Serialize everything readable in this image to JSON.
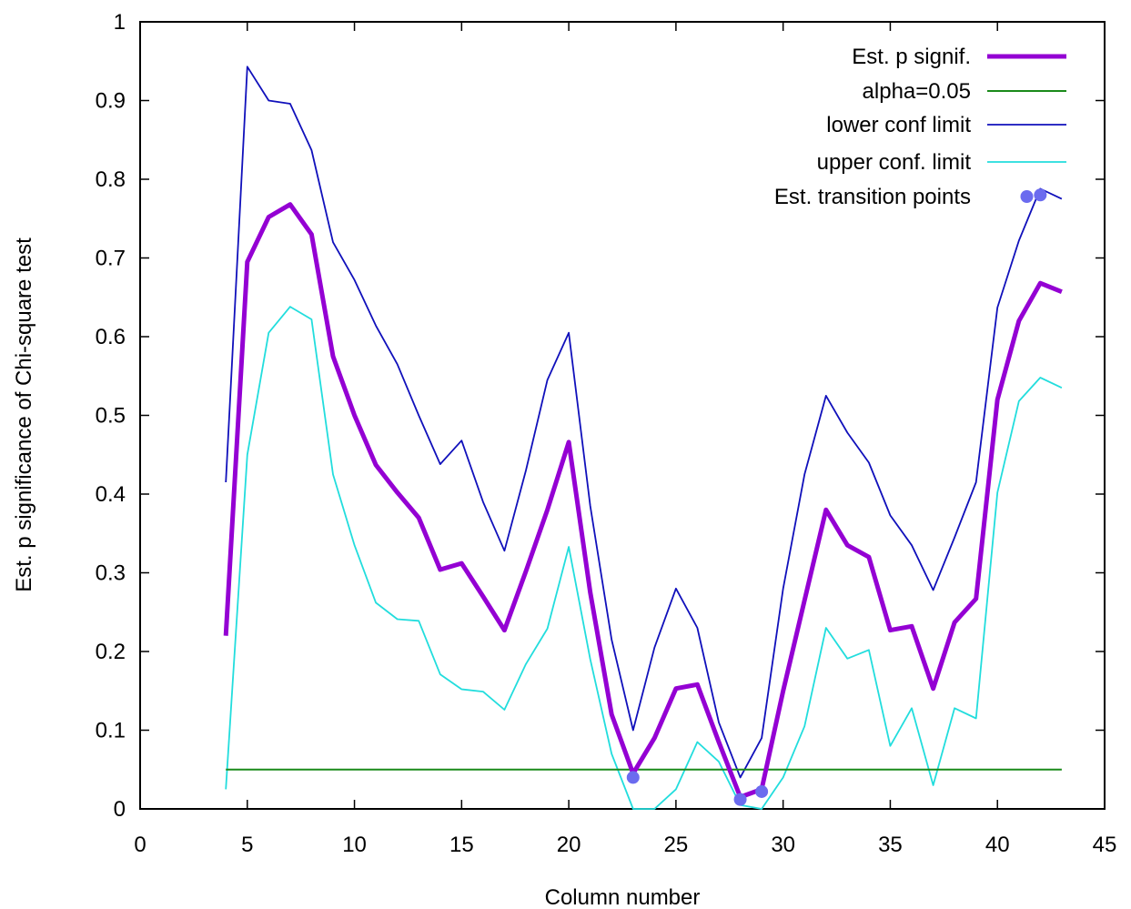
{
  "chart_data": {
    "type": "line",
    "title": "",
    "xlabel": "Column number",
    "ylabel": "Est. p significance of Chi-square test",
    "xlim": [
      0,
      45
    ],
    "ylim": [
      0,
      1
    ],
    "xticks": [
      0,
      5,
      10,
      15,
      20,
      25,
      30,
      35,
      40,
      45
    ],
    "xtick_labels": [
      "0",
      "5",
      "10",
      "15",
      "20",
      "25",
      "30",
      "35",
      "40",
      "45"
    ],
    "yticks": [
      0,
      0.1,
      0.2,
      0.3,
      0.4,
      0.5,
      0.6,
      0.7,
      0.8,
      0.9,
      1
    ],
    "ytick_labels": [
      "0",
      "0.1",
      "0.2",
      "0.3",
      "0.4",
      "0.5",
      "0.6",
      "0.7",
      "0.8",
      "0.9",
      "1"
    ],
    "grid": false,
    "legend_position": "top-right",
    "series": [
      {
        "name": "Est. p signif.",
        "color": "#9400d3",
        "width": 5,
        "style": "line",
        "x": [
          4,
          5,
          6,
          7,
          8,
          9,
          10,
          11,
          12,
          13,
          14,
          15,
          16,
          17,
          18,
          19,
          20,
          21,
          22,
          23,
          24,
          25,
          26,
          27,
          28,
          29,
          30,
          31,
          32,
          33,
          34,
          35,
          36,
          37,
          38,
          39,
          40,
          41,
          42,
          43
        ],
        "y": [
          0.22,
          0.695,
          0.752,
          0.768,
          0.73,
          0.575,
          0.5,
          0.437,
          0.402,
          0.37,
          0.304,
          0.312,
          0.27,
          0.227,
          0.302,
          0.38,
          0.466,
          0.275,
          0.12,
          0.045,
          0.09,
          0.153,
          0.158,
          0.085,
          0.015,
          0.025,
          0.15,
          0.265,
          0.38,
          0.335,
          0.32,
          0.227,
          0.232,
          0.153,
          0.237,
          0.267,
          0.52,
          0.62,
          0.668,
          0.657
        ]
      },
      {
        "name": "alpha=0.05",
        "color": "#1a8a1a",
        "width": 2,
        "style": "line",
        "x": [
          4,
          43
        ],
        "y": [
          0.05,
          0.05
        ]
      },
      {
        "name": "lower conf limit",
        "color": "#1010bb",
        "width": 1.8,
        "style": "line",
        "x": [
          4,
          5,
          6,
          7,
          8,
          9,
          10,
          11,
          12,
          13,
          14,
          15,
          16,
          17,
          18,
          19,
          20,
          21,
          22,
          23,
          24,
          25,
          26,
          27,
          28,
          29,
          30,
          31,
          32,
          33,
          34,
          35,
          36,
          37,
          38,
          39,
          40,
          41,
          42,
          43
        ],
        "y": [
          0.415,
          0.943,
          0.9,
          0.896,
          0.837,
          0.72,
          0.672,
          0.614,
          0.565,
          0.5,
          0.438,
          0.468,
          0.39,
          0.328,
          0.43,
          0.545,
          0.605,
          0.385,
          0.215,
          0.1,
          0.205,
          0.28,
          0.23,
          0.11,
          0.04,
          0.09,
          0.28,
          0.425,
          0.525,
          0.478,
          0.44,
          0.373,
          0.335,
          0.278,
          0.345,
          0.415,
          0.637,
          0.722,
          0.788,
          0.775
        ]
      },
      {
        "name": "upper conf. limit",
        "color": "#22dddd",
        "width": 1.8,
        "style": "line",
        "x": [
          4,
          5,
          6,
          7,
          8,
          9,
          10,
          11,
          12,
          13,
          14,
          15,
          16,
          17,
          18,
          19,
          20,
          21,
          22,
          23,
          24,
          25,
          26,
          27,
          28,
          29,
          30,
          31,
          32,
          33,
          34,
          35,
          36,
          37,
          38,
          39,
          40,
          41,
          42,
          43
        ],
        "y": [
          0.025,
          0.45,
          0.605,
          0.638,
          0.622,
          0.425,
          0.335,
          0.262,
          0.241,
          0.239,
          0.171,
          0.152,
          0.149,
          0.126,
          0.184,
          0.229,
          0.333,
          0.19,
          0.07,
          0.0,
          0.0,
          0.025,
          0.085,
          0.06,
          0.005,
          0.0,
          0.04,
          0.105,
          0.23,
          0.191,
          0.202,
          0.08,
          0.128,
          0.03,
          0.128,
          0.115,
          0.402,
          0.518,
          0.548,
          0.535
        ]
      },
      {
        "name": "Est. transition points",
        "color": "#6b6bef",
        "style": "points",
        "x": [
          23,
          28,
          29,
          42
        ],
        "y": [
          0.04,
          0.012,
          0.022,
          0.78
        ]
      }
    ]
  }
}
